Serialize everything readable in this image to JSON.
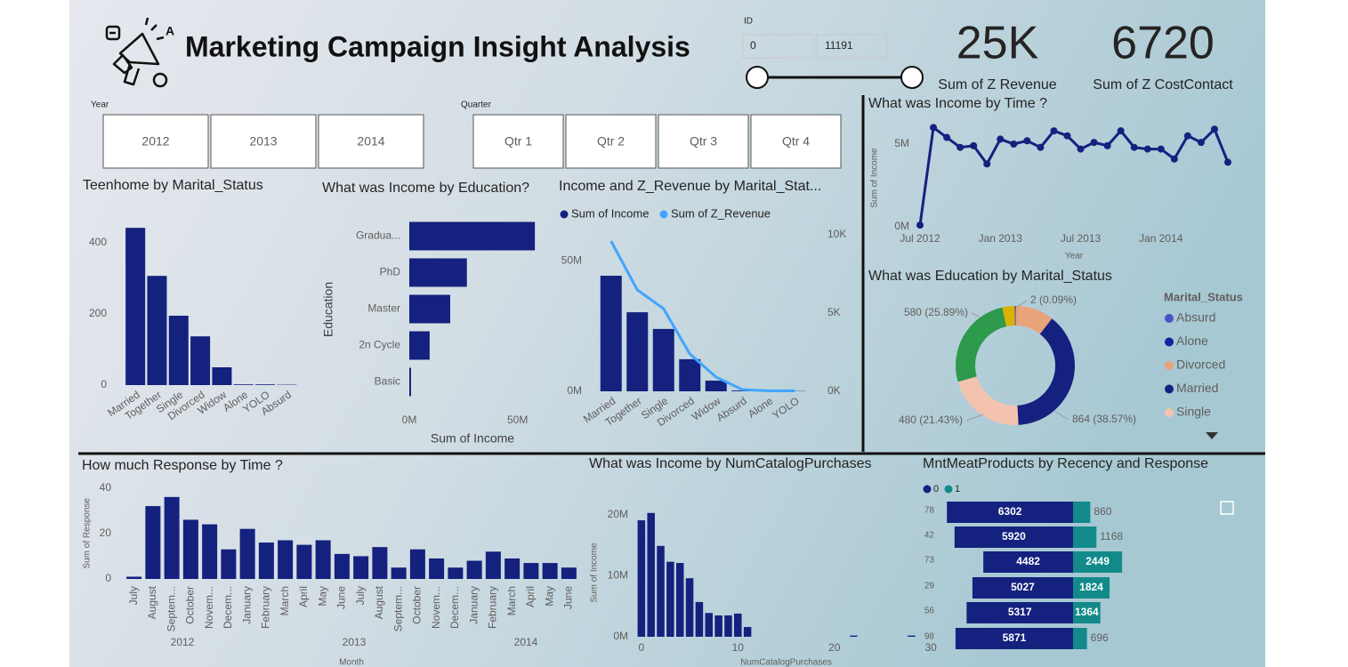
{
  "header": {
    "title": "Marketing Campaign Insight Analysis"
  },
  "id_slicer": {
    "label": "ID",
    "min": 0,
    "max": 11191
  },
  "kpis": [
    {
      "value": "25K",
      "label": "Sum of Z Revenue"
    },
    {
      "value": "6720",
      "label": "Sum of Z CostContact"
    }
  ],
  "year_slicer": {
    "label": "Year",
    "options": [
      "2012",
      "2013",
      "2014"
    ]
  },
  "quarter_slicer": {
    "label": "Quarter",
    "options": [
      "Qtr 1",
      "Qtr 2",
      "Qtr 3",
      "Qtr 4"
    ]
  },
  "chart_data": [
    {
      "type": "bar",
      "title": "Teenhome by Marital_Status",
      "categories": [
        "Married",
        "Together",
        "Single",
        "Divorced",
        "Widow",
        "Alone",
        "YOLO",
        "Absurd"
      ],
      "values": [
        442,
        307,
        195,
        137,
        50,
        2,
        2,
        1
      ],
      "color": "#14217e",
      "ylim": [
        0,
        460
      ],
      "yticks": [
        0,
        200,
        400
      ]
    },
    {
      "type": "hbar",
      "title": "What was Income by Education?",
      "categories": [
        "Gradua...",
        "PhD",
        "Master",
        "2n Cycle",
        "Basic"
      ],
      "values": [
        58000000,
        26600000,
        18900000,
        9400000,
        800000
      ],
      "color": "#14217e",
      "xlim": [
        0,
        60000000
      ],
      "xticks": [
        {
          "value": 0,
          "label": "0M"
        },
        {
          "value": 50000000,
          "label": "50M"
        }
      ],
      "xlabel": "Sum of Income",
      "ylabel": "Education"
    },
    {
      "type": "combo",
      "title": "Income and Z_Revenue by Marital_Stat...",
      "categories": [
        "Married",
        "Together",
        "Single",
        "Divorced",
        "Widow",
        "Absurd",
        "Alone",
        "YOLO"
      ],
      "series": [
        {
          "name": "Sum of Income",
          "color": "#14217e",
          "values": [
            44300000,
            30300000,
            23900000,
            12300000,
            4100000,
            300000,
            100000,
            100000
          ]
        },
        {
          "name": "Sum of Z_Revenue",
          "color": "#41a4ff",
          "axis": "y2",
          "values": [
            9600,
            6480,
            5280,
            2390,
            910,
            110,
            30,
            30
          ]
        }
      ],
      "ylim": [
        0,
        60000000
      ],
      "yticks": [
        {
          "value": 0,
          "label": "0M"
        },
        {
          "value": 50000000,
          "label": "50M"
        }
      ],
      "y2lim": [
        0,
        10000
      ],
      "y2ticks": [
        {
          "value": 0,
          "label": "0K"
        },
        {
          "value": 5000,
          "label": "5K"
        },
        {
          "value": 10000,
          "label": "10K"
        }
      ]
    },
    {
      "type": "line",
      "title": "What was Income by Time ?",
      "x": [
        "2012-07",
        "2012-08",
        "2012-09",
        "2012-10",
        "2012-11",
        "2012-12",
        "2013-01",
        "2013-02",
        "2013-03",
        "2013-04",
        "2013-05",
        "2013-06",
        "2013-07",
        "2013-08",
        "2013-09",
        "2013-10",
        "2013-11",
        "2013-12",
        "2014-01",
        "2014-02",
        "2014-03",
        "2014-04",
        "2014-05",
        "2014-06"
      ],
      "values": [
        100000,
        6000000,
        5400000,
        4800000,
        4900000,
        3800000,
        5300000,
        5000000,
        5200000,
        4800000,
        5800000,
        5500000,
        4700000,
        5100000,
        4900000,
        5800000,
        4800000,
        4700000,
        4700000,
        4100000,
        5500000,
        5100000,
        5900000,
        3900000
      ],
      "color": "#14217e",
      "ylim": [
        0,
        6000000
      ],
      "yticks": [
        {
          "value": 0,
          "label": "0M"
        },
        {
          "value": 5000000,
          "label": "5M"
        }
      ],
      "xticks": [
        {
          "value": "2012-07",
          "label": "Jul 2012"
        },
        {
          "value": "2013-01",
          "label": "Jan 2013"
        },
        {
          "value": "2013-07",
          "label": "Jul 2013"
        },
        {
          "value": "2014-01",
          "label": "Jan 2014"
        }
      ],
      "xlabel": "Year",
      "ylabel": "Sum of Income"
    },
    {
      "type": "donut",
      "title": "What was Education by Marital_Status",
      "legend_title": "Marital_Status",
      "categories": [
        "Absurd",
        "Alone",
        "Divorced",
        "Married",
        "Single",
        null,
        null,
        null
      ],
      "values": [
        2,
        3,
        232,
        864,
        480,
        580,
        77,
        2
      ],
      "value_labels": [
        "2 (0.09%)",
        null,
        null,
        "864 (38.57%)",
        "480 (21.43%)",
        "580 (25.89%)",
        null,
        null
      ],
      "colors": [
        "#4a52c9",
        "#12239e",
        "#e9a27a",
        "#14217e",
        "#f4c3b0",
        "#2e9a4c",
        "#d9b300",
        "#6b007b"
      ]
    },
    {
      "type": "bar",
      "title": "How much Response by Time ?",
      "categories": [
        "July",
        "August",
        "Septem...",
        "October",
        "Novem...",
        "Decem...",
        "January",
        "February",
        "March",
        "April",
        "May",
        "June",
        "July",
        "August",
        "Septem...",
        "October",
        "Novem...",
        "Decem...",
        "January",
        "February",
        "March",
        "April",
        "May",
        "June"
      ],
      "values": [
        1,
        32,
        36,
        26,
        24,
        13,
        22,
        16,
        17,
        15,
        17,
        11,
        10,
        14,
        5,
        13,
        9,
        5,
        8,
        12,
        9,
        7,
        7,
        5
      ],
      "color": "#14217e",
      "ylim": [
        0,
        40
      ],
      "yticks": [
        0,
        20,
        40
      ],
      "x_groups": [
        "2012",
        "2013",
        "2014"
      ],
      "xlabel": "Month",
      "ylabel": "Sum of Response"
    },
    {
      "type": "bar",
      "title": "What was Income by NumCatalogPurchases",
      "x": [
        0,
        1,
        2,
        3,
        4,
        5,
        6,
        7,
        8,
        9,
        10,
        11,
        22,
        28
      ],
      "values": [
        19100000,
        20300000,
        14900000,
        12300000,
        12100000,
        9600000,
        5700000,
        3900000,
        3500000,
        3500000,
        3800000,
        1600000,
        200000,
        200000
      ],
      "color": "#14217e",
      "xlim": [
        -1,
        31
      ],
      "xticks": [
        0,
        10,
        20,
        30
      ],
      "ylim": [
        0,
        21000000
      ],
      "yticks": [
        {
          "value": 0,
          "label": "0M"
        },
        {
          "value": 10000000,
          "label": "10M"
        },
        {
          "value": 20000000,
          "label": "20M"
        }
      ],
      "xlabel": "NumCatalogPurchases",
      "ylabel": "Sum of Income"
    },
    {
      "type": "diverging_bar",
      "title": "MntMeatProducts by Recency and Response",
      "categories": [
        "78",
        "42",
        "73",
        "29",
        "56",
        "98"
      ],
      "series": [
        {
          "name": "0",
          "color": "#14217e",
          "values": [
            6302,
            5920,
            4482,
            5027,
            5317,
            5871
          ]
        },
        {
          "name": "1",
          "color": "#138a8a",
          "values": [
            860,
            1168,
            2449,
            1824,
            1364,
            696
          ]
        }
      ]
    }
  ]
}
